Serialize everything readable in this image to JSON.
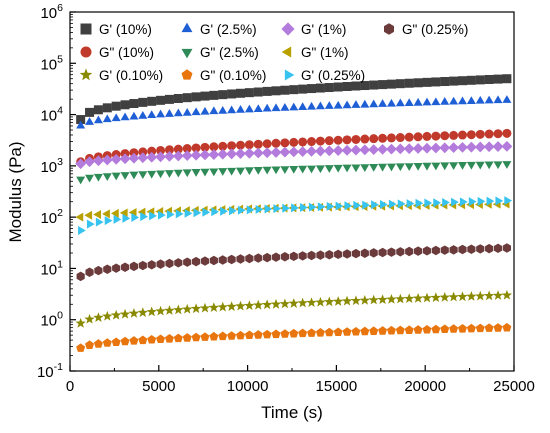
{
  "chart_data": {
    "type": "scatter",
    "title": "",
    "xlabel": "Time (s)",
    "ylabel": "Modulus (Pa)",
    "xlim": [
      0,
      25000
    ],
    "ylim": [
      0.1,
      1000000
    ],
    "y_scale": "log",
    "grid": false,
    "legend_position": "top",
    "x_ticks": [
      {
        "value": 0,
        "label": "0"
      },
      {
        "value": 5000,
        "label": "5000"
      },
      {
        "value": 10000,
        "label": "10000"
      },
      {
        "value": 15000,
        "label": "15000"
      },
      {
        "value": 20000,
        "label": "20000"
      },
      {
        "value": 25000,
        "label": "25000"
      }
    ],
    "y_ticks": [
      {
        "value": 0.1,
        "base": "10",
        "exp": "-1"
      },
      {
        "value": 1,
        "base": "10",
        "exp": "0"
      },
      {
        "value": 10,
        "base": "10",
        "exp": "1"
      },
      {
        "value": 100,
        "base": "10",
        "exp": "2"
      },
      {
        "value": 1000,
        "base": "10",
        "exp": "3"
      },
      {
        "value": 10000,
        "base": "10",
        "exp": "4"
      },
      {
        "value": 100000,
        "base": "10",
        "exp": "5"
      },
      {
        "value": 1000000,
        "base": "10",
        "exp": "6"
      }
    ],
    "x_points": [
      600,
      1100,
      1600,
      2100,
      2600,
      3100,
      3600,
      4100,
      4600,
      5100,
      5600,
      6100,
      6600,
      7100,
      7600,
      8100,
      8600,
      9100,
      9600,
      10100,
      10600,
      11100,
      11600,
      12100,
      12600,
      13100,
      13600,
      14100,
      14600,
      15100,
      15600,
      16100,
      16600,
      17100,
      17600,
      18100,
      18600,
      19100,
      19600,
      20100,
      20600,
      21100,
      21600,
      22100,
      22600,
      23100,
      23600,
      24100,
      24600
    ],
    "series": [
      {
        "name": "G' (10%)",
        "marker": "square",
        "color": "#404040",
        "y_start": 8000,
        "y_end": 50000,
        "shape": 0.45
      },
      {
        "name": "G\" (10%)",
        "marker": "circle",
        "color": "#c0392b",
        "y_start": 1200,
        "y_end": 4300,
        "shape": 0.55
      },
      {
        "name": "G' (0.10%)",
        "marker": "star",
        "color": "#8a8a00",
        "y_start": 0.85,
        "y_end": 3.0,
        "shape": 0.5
      },
      {
        "name": "G' (2.5%)",
        "marker": "triangle-up",
        "color": "#1f5fd6",
        "y_start": 6000,
        "y_end": 19000,
        "shape": 0.5
      },
      {
        "name": "G\" (2.5%)",
        "marker": "triangle-down",
        "color": "#2e8b57",
        "y_start": 550,
        "y_end": 1100,
        "shape": 0.55
      },
      {
        "name": "G\" (0.10%)",
        "marker": "pentagon",
        "color": "#e8750d",
        "y_start": 0.28,
        "y_end": 0.7,
        "shape": 0.5
      },
      {
        "name": "G' (1%)",
        "marker": "diamond",
        "color": "#b37bdb",
        "y_start": 1100,
        "y_end": 2400,
        "shape": 0.55
      },
      {
        "name": "G\" (1%)",
        "marker": "triangle-left",
        "color": "#b8a000",
        "y_start": 100,
        "y_end": 180,
        "shape": 0.5
      },
      {
        "name": "G' (0.25%)",
        "marker": "triangle-right",
        "color": "#36c3f0",
        "y_start": 55,
        "y_end": 210,
        "shape": 0.4
      },
      {
        "name": "G\" (0.25%)",
        "marker": "hexagon",
        "color": "#6b3a3a",
        "y_start": 7,
        "y_end": 25,
        "shape": 0.5
      }
    ]
  }
}
